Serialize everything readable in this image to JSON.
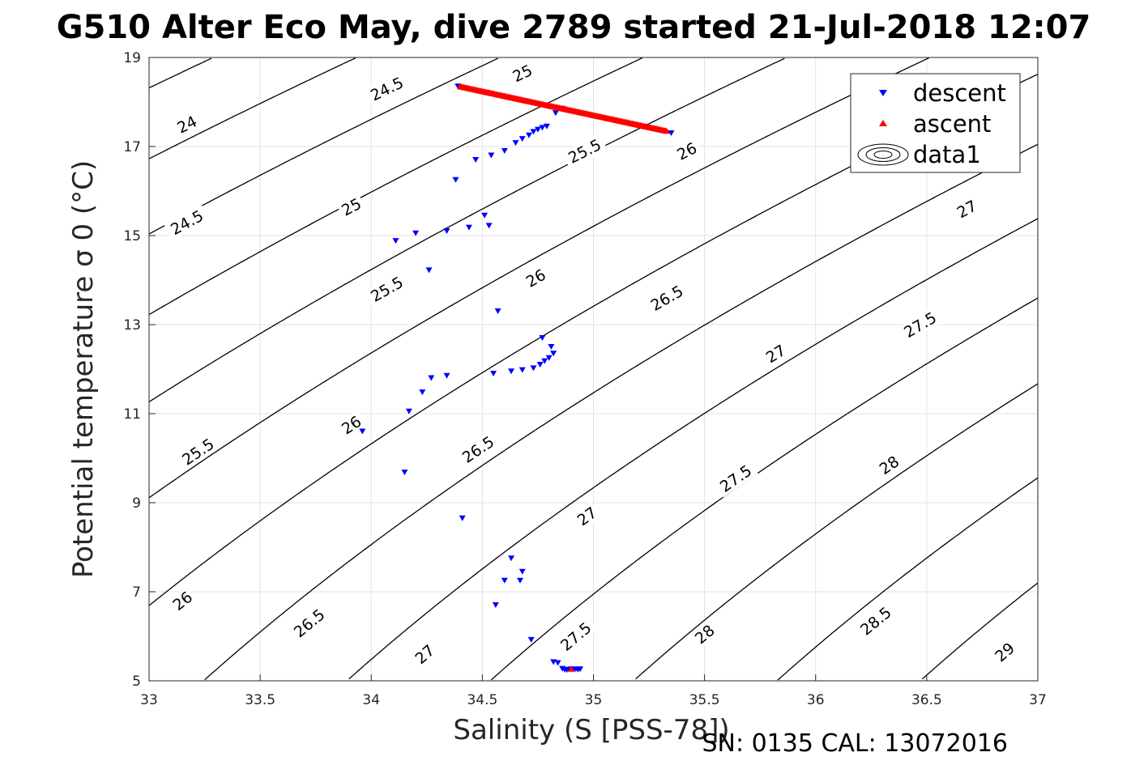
{
  "chart_data": {
    "type": "scatter",
    "title": "G510 Alter Eco May, dive 2789 started 21-Jul-2018 12:07",
    "xlabel": "Salinity (S [PSS-78])",
    "ylabel": "Potential temperature σ 0 (°C)",
    "footer": "SN: 0135  CAL: 13072016",
    "xlim": [
      33,
      37
    ],
    "ylim": [
      5,
      19
    ],
    "xticks": [
      "33",
      "33.5",
      "34",
      "34.5",
      "35",
      "35.5",
      "36",
      "36.5",
      "37"
    ],
    "yticks": [
      "5",
      "7",
      "9",
      "11",
      "13",
      "15",
      "17",
      "19"
    ],
    "grid": true,
    "legend": {
      "placement": "top-right",
      "entries": [
        {
          "name": "descent",
          "color": "#0000ff",
          "marker": "triangle-down"
        },
        {
          "name": "ascent",
          "color": "#ff0000",
          "marker": "triangle-up"
        },
        {
          "name": "data1",
          "color": "#000000",
          "marker": "contour"
        }
      ]
    },
    "contours": {
      "name": "data1",
      "color": "#000000",
      "levels": [
        "24",
        "24.5",
        "25",
        "25.5",
        "26",
        "26.5",
        "27",
        "27.5",
        "28",
        "28.5",
        "29"
      ],
      "labels": [
        {
          "text": "24",
          "x": 33.17,
          "y": 17.5
        },
        {
          "text": "24.5",
          "x": 33.17,
          "y": 15.3
        },
        {
          "text": "24.5",
          "x": 34.07,
          "y": 18.3
        },
        {
          "text": "25",
          "x": 33.91,
          "y": 15.65
        },
        {
          "text": "25",
          "x": 34.68,
          "y": 18.65
        },
        {
          "text": "25.5",
          "x": 33.22,
          "y": 10.15
        },
        {
          "text": "25.5",
          "x": 34.07,
          "y": 13.8
        },
        {
          "text": "25.5",
          "x": 34.96,
          "y": 16.9
        },
        {
          "text": "26",
          "x": 33.15,
          "y": 6.8
        },
        {
          "text": "26",
          "x": 33.91,
          "y": 10.75
        },
        {
          "text": "26",
          "x": 34.74,
          "y": 14.05
        },
        {
          "text": "26",
          "x": 35.42,
          "y": 16.9
        },
        {
          "text": "26.5",
          "x": 33.72,
          "y": 6.3
        },
        {
          "text": "26.5",
          "x": 34.48,
          "y": 10.2
        },
        {
          "text": "26.5",
          "x": 35.33,
          "y": 13.6
        },
        {
          "text": "27",
          "x": 34.24,
          "y": 5.6
        },
        {
          "text": "27",
          "x": 34.97,
          "y": 8.7
        },
        {
          "text": "27",
          "x": 35.82,
          "y": 12.35
        },
        {
          "text": "27",
          "x": 36.68,
          "y": 15.6
        },
        {
          "text": "27.5",
          "x": 34.92,
          "y": 6.0
        },
        {
          "text": "27.5",
          "x": 35.64,
          "y": 9.55
        },
        {
          "text": "27.5",
          "x": 36.47,
          "y": 13.0
        },
        {
          "text": "28",
          "x": 35.5,
          "y": 6.05
        },
        {
          "text": "28",
          "x": 36.33,
          "y": 9.85
        },
        {
          "text": "28.5",
          "x": 36.27,
          "y": 6.35
        },
        {
          "text": "29",
          "x": 36.85,
          "y": 5.65
        }
      ]
    },
    "series": [
      {
        "name": "descent",
        "color": "#0000ff",
        "marker": "triangle-down",
        "points": [
          [
            34.39,
            18.35
          ],
          [
            34.52,
            18.2
          ],
          [
            34.83,
            17.75
          ],
          [
            34.86,
            17.85
          ],
          [
            34.79,
            17.45
          ],
          [
            34.77,
            17.42
          ],
          [
            34.75,
            17.38
          ],
          [
            34.73,
            17.33
          ],
          [
            34.71,
            17.25
          ],
          [
            34.68,
            17.17
          ],
          [
            34.65,
            17.08
          ],
          [
            34.6,
            16.9
          ],
          [
            34.54,
            16.8
          ],
          [
            34.47,
            16.7
          ],
          [
            34.38,
            16.25
          ],
          [
            34.51,
            15.45
          ],
          [
            34.53,
            15.22
          ],
          [
            34.44,
            15.18
          ],
          [
            34.34,
            15.1
          ],
          [
            34.2,
            15.05
          ],
          [
            34.11,
            14.88
          ],
          [
            34.26,
            14.22
          ],
          [
            34.57,
            13.3
          ],
          [
            34.77,
            12.7
          ],
          [
            34.81,
            12.5
          ],
          [
            34.82,
            12.35
          ],
          [
            34.8,
            12.25
          ],
          [
            34.78,
            12.18
          ],
          [
            34.76,
            12.1
          ],
          [
            34.73,
            12.02
          ],
          [
            34.68,
            11.98
          ],
          [
            34.63,
            11.95
          ],
          [
            34.55,
            11.9
          ],
          [
            34.34,
            11.85
          ],
          [
            34.27,
            11.8
          ],
          [
            34.23,
            11.48
          ],
          [
            34.17,
            11.05
          ],
          [
            33.96,
            10.6
          ],
          [
            34.15,
            9.68
          ],
          [
            34.41,
            8.65
          ],
          [
            34.63,
            7.75
          ],
          [
            34.68,
            7.45
          ],
          [
            34.6,
            7.25
          ],
          [
            34.67,
            7.25
          ],
          [
            34.56,
            6.7
          ],
          [
            34.72,
            5.92
          ],
          [
            34.82,
            5.42
          ],
          [
            34.84,
            5.4
          ],
          [
            34.86,
            5.27
          ],
          [
            34.87,
            5.25
          ],
          [
            34.88,
            5.24
          ],
          [
            34.89,
            5.25
          ],
          [
            34.9,
            5.26
          ],
          [
            34.91,
            5.25
          ],
          [
            34.92,
            5.26
          ],
          [
            34.93,
            5.25
          ],
          [
            34.94,
            5.26
          ],
          [
            35.35,
            17.3
          ]
        ]
      },
      {
        "name": "ascent",
        "color": "#ff0000",
        "marker": "triangle-up",
        "from": [
          34.4,
          18.35
        ],
        "to": [
          35.33,
          17.35
        ],
        "count": 180,
        "extra_points": [
          [
            34.9,
            5.27
          ]
        ]
      }
    ]
  }
}
